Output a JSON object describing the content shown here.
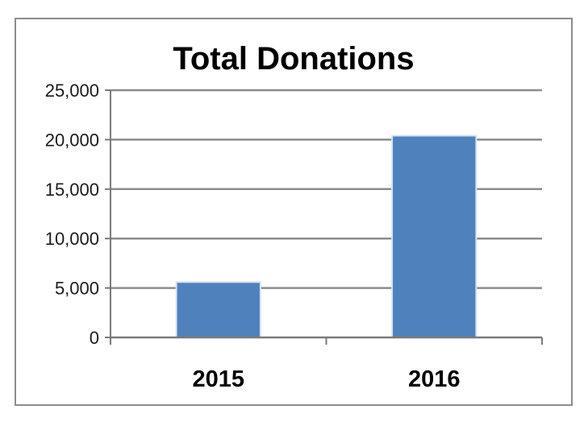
{
  "chart_data": {
    "type": "bar",
    "title": "Total Donations",
    "xlabel": "",
    "ylabel": "",
    "categories": [
      "2015",
      "2016"
    ],
    "values": [
      5600,
      20400
    ],
    "ylim": [
      0,
      25000
    ],
    "yticks": [
      "0",
      "5,000",
      "10,000",
      "15,000",
      "20,000",
      "25,000"
    ],
    "grid": true,
    "legend": "none",
    "colors": {
      "bar": "#4f81bd",
      "grid": "#8c8c8c",
      "frame": "#8c8c8c"
    }
  }
}
